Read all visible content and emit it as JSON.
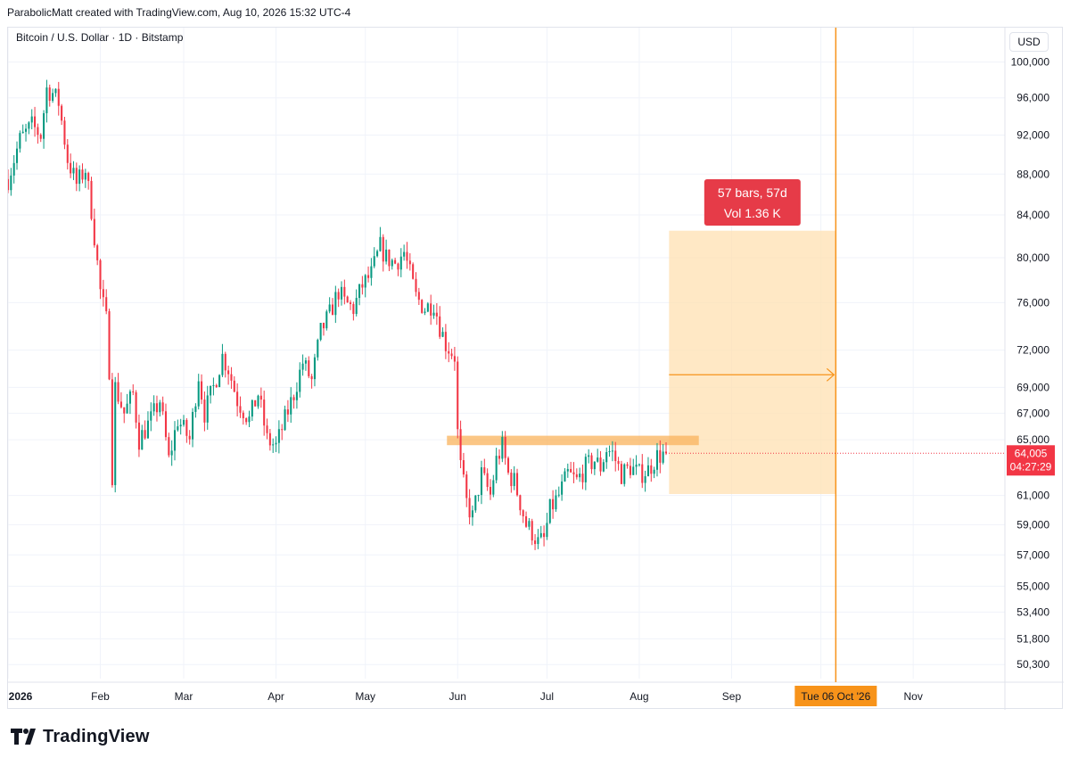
{
  "header": {
    "credit": "ParabolicMatt created with TradingView.com, Aug 10, 2026 15:32 UTC-4",
    "symbol": "Bitcoin / U.S. Dollar · 1D · Bitstamp",
    "currency": "USD"
  },
  "footer": {
    "brand": "TradingView"
  },
  "chart_data": {
    "type": "candlestick",
    "title": "Bitcoin / U.S. Dollar · 1D · Bitstamp",
    "xlabel": "",
    "ylabel": "USD",
    "x_range": [
      "2026-01-01",
      "2026-11-30"
    ],
    "y_range": [
      49500,
      104000
    ],
    "y_scale": "log",
    "y_ticks": [
      "100,000",
      "96,000",
      "92,000",
      "88,000",
      "84,000",
      "80,000",
      "76,000",
      "72,000",
      "69,000",
      "67,000",
      "65,000",
      "61,000",
      "59,000",
      "57,000",
      "55,000",
      "53,400",
      "51,800",
      "50,300"
    ],
    "x_ticks": [
      {
        "label": "2026",
        "date": "2026-01-01"
      },
      {
        "label": "Feb",
        "date": "2026-02-01"
      },
      {
        "label": "Mar",
        "date": "2026-03-01"
      },
      {
        "label": "Apr",
        "date": "2026-04-01"
      },
      {
        "label": "May",
        "date": "2026-05-01"
      },
      {
        "label": "Jun",
        "date": "2026-06-01"
      },
      {
        "label": "Jul",
        "date": "2026-07-01"
      },
      {
        "label": "Aug",
        "date": "2026-08-01"
      },
      {
        "label": "Sep",
        "date": "2026-09-01"
      }
    ],
    "x_tick_nov": {
      "label": "Nov",
      "date": "2026-11-01"
    },
    "price_anchors": [
      [
        "2026-01-01",
        87500
      ],
      [
        "2026-01-05",
        91500
      ],
      [
        "2026-01-09",
        93000
      ],
      [
        "2026-01-12",
        92000
      ],
      [
        "2026-01-14",
        97000
      ],
      [
        "2026-01-16",
        96500
      ],
      [
        "2026-01-18",
        95500
      ],
      [
        "2026-01-21",
        89500
      ],
      [
        "2026-01-24",
        87000
      ],
      [
        "2026-01-27",
        88500
      ],
      [
        "2026-01-29",
        84500
      ],
      [
        "2026-01-30",
        82000
      ],
      [
        "2026-02-01",
        77000
      ],
      [
        "2026-02-03",
        74500
      ],
      [
        "2026-02-04",
        70500
      ],
      [
        "2026-02-05",
        62500
      ],
      [
        "2026-02-06",
        69000
      ],
      [
        "2026-02-09",
        67000
      ],
      [
        "2026-02-12",
        68500
      ],
      [
        "2026-02-14",
        65000
      ],
      [
        "2026-02-18",
        66500
      ],
      [
        "2026-02-21",
        68000
      ],
      [
        "2026-02-24",
        63500
      ],
      [
        "2026-02-27",
        66500
      ],
      [
        "2026-03-03",
        65000
      ],
      [
        "2026-03-06",
        70000
      ],
      [
        "2026-03-08",
        67000
      ],
      [
        "2026-03-11",
        69000
      ],
      [
        "2026-03-14",
        71500
      ],
      [
        "2026-03-16",
        70500
      ],
      [
        "2026-03-19",
        68000
      ],
      [
        "2026-03-23",
        66500
      ],
      [
        "2026-03-26",
        68500
      ],
      [
        "2026-03-29",
        65000
      ],
      [
        "2026-04-01",
        64500
      ],
      [
        "2026-04-04",
        66500
      ],
      [
        "2026-04-07",
        68500
      ],
      [
        "2026-04-10",
        71000
      ],
      [
        "2026-04-13",
        69500
      ],
      [
        "2026-04-16",
        73500
      ],
      [
        "2026-04-19",
        75000
      ],
      [
        "2026-04-22",
        77000
      ],
      [
        "2026-04-24",
        76000
      ],
      [
        "2026-04-27",
        75500
      ],
      [
        "2026-04-30",
        77500
      ],
      [
        "2026-05-03",
        78500
      ],
      [
        "2026-05-06",
        81000
      ],
      [
        "2026-05-08",
        80000
      ],
      [
        "2026-05-11",
        79500
      ],
      [
        "2026-05-14",
        80500
      ],
      [
        "2026-05-16",
        78500
      ],
      [
        "2026-05-18",
        76500
      ],
      [
        "2026-05-21",
        75500
      ],
      [
        "2026-05-24",
        76000
      ],
      [
        "2026-05-26",
        74000
      ],
      [
        "2026-05-28",
        72500
      ],
      [
        "2026-05-31",
        71500
      ],
      [
        "2026-06-01",
        65500
      ],
      [
        "2026-06-02",
        63000
      ],
      [
        "2026-06-04",
        60500
      ],
      [
        "2026-06-06",
        59500
      ],
      [
        "2026-06-09",
        62500
      ],
      [
        "2026-06-12",
        61000
      ],
      [
        "2026-06-14",
        63500
      ],
      [
        "2026-06-16",
        64500
      ],
      [
        "2026-06-18",
        62500
      ],
      [
        "2026-06-20",
        62000
      ],
      [
        "2026-06-22",
        60500
      ],
      [
        "2026-06-24",
        59000
      ],
      [
        "2026-06-26",
        58500
      ],
      [
        "2026-06-28",
        57800
      ],
      [
        "2026-06-30",
        58000
      ],
      [
        "2026-07-02",
        60000
      ],
      [
        "2026-07-05",
        61000
      ],
      [
        "2026-07-08",
        62500
      ],
      [
        "2026-07-11",
        62000
      ],
      [
        "2026-07-14",
        63000
      ],
      [
        "2026-07-17",
        63500
      ],
      [
        "2026-07-19",
        63000
      ],
      [
        "2026-07-21",
        64300
      ],
      [
        "2026-07-23",
        64000
      ],
      [
        "2026-07-26",
        62500
      ],
      [
        "2026-07-29",
        63000
      ],
      [
        "2026-08-01",
        62500
      ],
      [
        "2026-08-04",
        62800
      ],
      [
        "2026-08-07",
        63800
      ],
      [
        "2026-08-10",
        64005
      ]
    ],
    "candle_spacing_days": 1,
    "colors": {
      "up": "#089981",
      "down": "#f23645",
      "accent": "#f7931a",
      "box_fill": "#ffe0b2",
      "label_red": "#e63b48"
    },
    "resistance_zone": {
      "price_low": 64600,
      "price_high": 65300,
      "start": "2026-06-01",
      "end": "2026-08-21"
    },
    "date_range_box": {
      "start": "2026-08-11",
      "end": "2026-10-06",
      "price_low": 61100,
      "price_high": 82500,
      "mid_price": 70000
    },
    "vertical_marker": {
      "date": "2026-10-06",
      "label": "Tue 06 Oct '26"
    },
    "measure_label": {
      "line1": "57 bars, 57d",
      "line2": "Vol 1.36 K"
    },
    "last_price": {
      "value": "64,005",
      "countdown": "04:27:29",
      "price": 64005
    }
  }
}
